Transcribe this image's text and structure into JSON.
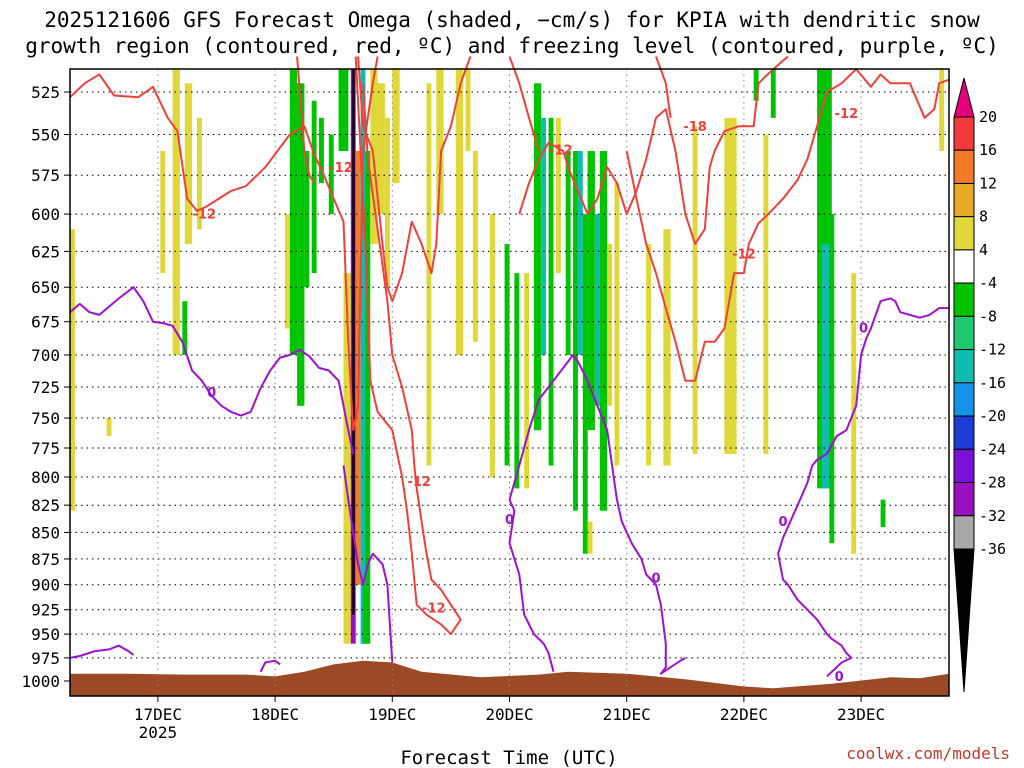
{
  "title_line1": "2025121606 GFS Forecast Omega (shaded, −cm/s) for KPIA with dendritic snow",
  "title_line2": "growth region (contoured, red, ºC) and freezing level (contoured, purple, ºC)",
  "credit": "coolwx.com/models",
  "chart_data": {
    "type": "heatmap",
    "xlabel": "Forecast Time (UTC)",
    "ylabel": "",
    "x_range_hours": [
      0,
      180
    ],
    "x_ticks": [
      {
        "hour": 18,
        "label": "17DEC",
        "sub": "2025"
      },
      {
        "hour": 42,
        "label": "18DEC",
        "sub": ""
      },
      {
        "hour": 66,
        "label": "19DEC",
        "sub": ""
      },
      {
        "hour": 90,
        "label": "20DEC",
        "sub": ""
      },
      {
        "hour": 114,
        "label": "21DEC",
        "sub": ""
      },
      {
        "hour": 138,
        "label": "22DEC",
        "sub": ""
      },
      {
        "hour": 162,
        "label": "23DEC",
        "sub": ""
      }
    ],
    "y_range_hpa": [
      1015,
      500
    ],
    "y_ticks": [
      525,
      550,
      575,
      600,
      625,
      650,
      675,
      700,
      725,
      750,
      775,
      800,
      825,
      850,
      875,
      900,
      925,
      950,
      975,
      1000
    ],
    "colorbar": {
      "levels": [
        "20",
        "16",
        "12",
        "8",
        "4",
        "-4",
        "-8",
        "-12",
        "-16",
        "-20",
        "-24",
        "-28",
        "-32",
        "-36"
      ],
      "colors": [
        "#e3007a",
        "#f23c3c",
        "#f27a28",
        "#e8a828",
        "#e0d838",
        "#ffffff",
        "#00c400",
        "#20c870",
        "#10bcb0",
        "#1494e8",
        "#1e3cd6",
        "#7a10d6",
        "#9a10c0",
        "#a8a8a8",
        "#000000"
      ]
    },
    "contour_colors": {
      "dgz": "#f0403c",
      "freezing": "#a010d0",
      "ground": "#9c4a26"
    },
    "dgz_labels": [
      {
        "text": "-12",
        "hour": 27.5,
        "p": 603
      },
      {
        "text": "-12",
        "hour": 55.5,
        "p": 573
      },
      {
        "text": "-12",
        "hour": 100.5,
        "p": 562
      },
      {
        "text": "-18",
        "hour": 128,
        "p": 548
      },
      {
        "text": "-12",
        "hour": 138,
        "p": 630
      },
      {
        "text": "-12",
        "hour": 159,
        "p": 540
      },
      {
        "text": "-12",
        "hour": 71.5,
        "p": 808
      },
      {
        "text": "-12",
        "hour": 74.5,
        "p": 928
      }
    ],
    "freezing_labels": [
      {
        "text": "0",
        "hour": 29,
        "p": 733
      },
      {
        "text": "0",
        "hour": 90,
        "p": 842
      },
      {
        "text": "0",
        "hour": 120,
        "p": 898
      },
      {
        "text": "0",
        "hour": 146,
        "p": 844
      },
      {
        "text": "0",
        "hour": 162.5,
        "p": 683
      },
      {
        "text": "0",
        "hour": 157.5,
        "p": 1000
      }
    ],
    "omega_cells": [
      {
        "h0": 21,
        "h1": 22.5,
        "p0": 505,
        "p1": 700,
        "c": 4
      },
      {
        "h0": 18.5,
        "h1": 19.5,
        "p0": 560,
        "p1": 640,
        "c": 4
      },
      {
        "h0": 23.5,
        "h1": 25,
        "p0": 520,
        "p1": 620,
        "c": 4
      },
      {
        "h0": 26,
        "h1": 27,
        "p0": 540,
        "p1": 610,
        "c": 4
      },
      {
        "h0": 0,
        "h1": 1,
        "p0": 610,
        "p1": 830,
        "c": 4
      },
      {
        "h0": 7.5,
        "h1": 8.5,
        "p0": 750,
        "p1": 765,
        "c": 4
      },
      {
        "h0": 23,
        "h1": 24,
        "p0": 660,
        "p1": 700,
        "c": 6
      },
      {
        "h0": 45,
        "h1": 46.5,
        "p0": 505,
        "p1": 700,
        "c": 6
      },
      {
        "h0": 46.5,
        "h1": 48,
        "p0": 520,
        "p1": 740,
        "c": 6
      },
      {
        "h0": 48,
        "h1": 49,
        "p0": 560,
        "p1": 650,
        "c": 6
      },
      {
        "h0": 44,
        "h1": 45,
        "p0": 600,
        "p1": 680,
        "c": 4
      },
      {
        "h0": 49.5,
        "h1": 50.5,
        "p0": 530,
        "p1": 640,
        "c": 6
      },
      {
        "h0": 51,
        "h1": 52,
        "p0": 540,
        "p1": 580,
        "c": 6
      },
      {
        "h0": 53,
        "h1": 54,
        "p0": 550,
        "p1": 600,
        "c": 6
      },
      {
        "h0": 55,
        "h1": 57,
        "p0": 505,
        "p1": 560,
        "c": 6
      },
      {
        "h0": 56,
        "h1": 57.5,
        "p0": 640,
        "p1": 960,
        "c": 4
      },
      {
        "h0": 57.5,
        "h1": 58.5,
        "p0": 505,
        "p1": 960,
        "c": 12
      },
      {
        "h0": 57.8,
        "h1": 58.3,
        "p0": 505,
        "p1": 930,
        "c": 14
      },
      {
        "h0": 58.5,
        "h1": 59.5,
        "p0": 560,
        "p1": 900,
        "c": 2
      },
      {
        "h0": 59.5,
        "h1": 60.5,
        "p0": 505,
        "p1": 960,
        "c": 8
      },
      {
        "h0": 60.5,
        "h1": 61.5,
        "p0": 560,
        "p1": 960,
        "c": 6
      },
      {
        "h0": 61.5,
        "h1": 63,
        "p0": 505,
        "p1": 620,
        "c": 4
      },
      {
        "h0": 63,
        "h1": 64.5,
        "p0": 520,
        "p1": 600,
        "c": 4
      },
      {
        "h0": 64.5,
        "h1": 65.5,
        "p0": 540,
        "p1": 650,
        "c": 4
      },
      {
        "h0": 60,
        "h1": 61,
        "p0": 900,
        "p1": 960,
        "c": 6
      },
      {
        "h0": 66,
        "h1": 67.5,
        "p0": 505,
        "p1": 580,
        "c": 4
      },
      {
        "h0": 73,
        "h1": 74,
        "p0": 520,
        "p1": 790,
        "c": 4
      },
      {
        "h0": 75,
        "h1": 76.5,
        "p0": 505,
        "p1": 600,
        "c": 4
      },
      {
        "h0": 79,
        "h1": 80.5,
        "p0": 505,
        "p1": 700,
        "c": 4
      },
      {
        "h0": 81,
        "h1": 82,
        "p0": 505,
        "p1": 560,
        "c": 4
      },
      {
        "h0": 86,
        "h1": 87,
        "p0": 600,
        "p1": 800,
        "c": 4
      },
      {
        "h0": 82.5,
        "h1": 83.5,
        "p0": 560,
        "p1": 690,
        "c": 4
      },
      {
        "h0": 89,
        "h1": 90,
        "p0": 620,
        "p1": 790,
        "c": 6
      },
      {
        "h0": 91,
        "h1": 92,
        "p0": 640,
        "p1": 810,
        "c": 6
      },
      {
        "h0": 93,
        "h1": 94,
        "p0": 640,
        "p1": 810,
        "c": 4
      },
      {
        "h0": 95,
        "h1": 96.5,
        "p0": 520,
        "p1": 760,
        "c": 6
      },
      {
        "h0": 96.5,
        "h1": 97.5,
        "p0": 540,
        "p1": 700,
        "c": 8
      },
      {
        "h0": 98,
        "h1": 99,
        "p0": 540,
        "p1": 790,
        "c": 6
      },
      {
        "h0": 99.5,
        "h1": 100.5,
        "p0": 540,
        "p1": 640,
        "c": 4
      },
      {
        "h0": 101.5,
        "h1": 102.5,
        "p0": 560,
        "p1": 700,
        "c": 6
      },
      {
        "h0": 103,
        "h1": 104,
        "p0": 560,
        "p1": 830,
        "c": 6
      },
      {
        "h0": 104,
        "h1": 105,
        "p0": 560,
        "p1": 700,
        "c": 8
      },
      {
        "h0": 105,
        "h1": 106,
        "p0": 600,
        "p1": 870,
        "c": 6
      },
      {
        "h0": 106,
        "h1": 107.5,
        "p0": 560,
        "p1": 760,
        "c": 6
      },
      {
        "h0": 107.5,
        "h1": 108.5,
        "p0": 600,
        "p1": 740,
        "c": 8
      },
      {
        "h0": 108.5,
        "h1": 110,
        "p0": 560,
        "p1": 830,
        "c": 6
      },
      {
        "h0": 110,
        "h1": 111,
        "p0": 620,
        "p1": 740,
        "c": 4
      },
      {
        "h0": 111.5,
        "h1": 112.5,
        "p0": 580,
        "p1": 790,
        "c": 4
      },
      {
        "h0": 106,
        "h1": 107,
        "p0": 840,
        "p1": 870,
        "c": 4
      },
      {
        "h0": 118,
        "h1": 119,
        "p0": 620,
        "p1": 790,
        "c": 4
      },
      {
        "h0": 121.5,
        "h1": 123,
        "p0": 610,
        "p1": 790,
        "c": 4
      },
      {
        "h0": 127.5,
        "h1": 128.5,
        "p0": 545,
        "p1": 780,
        "c": 4
      },
      {
        "h0": 134,
        "h1": 136.5,
        "p0": 540,
        "p1": 780,
        "c": 4
      },
      {
        "h0": 142,
        "h1": 143,
        "p0": 550,
        "p1": 780,
        "c": 4
      },
      {
        "h0": 140,
        "h1": 141,
        "p0": 505,
        "p1": 530,
        "c": 6
      },
      {
        "h0": 143.5,
        "h1": 144.5,
        "p0": 505,
        "p1": 540,
        "c": 6
      },
      {
        "h0": 153,
        "h1": 156,
        "p0": 505,
        "p1": 810,
        "c": 6
      },
      {
        "h0": 154,
        "h1": 155.5,
        "p0": 620,
        "p1": 810,
        "c": 8
      },
      {
        "h0": 155.5,
        "h1": 156.5,
        "p0": 600,
        "p1": 860,
        "c": 6
      },
      {
        "h0": 160,
        "h1": 161,
        "p0": 640,
        "p1": 870,
        "c": 4
      },
      {
        "h0": 166,
        "h1": 167,
        "p0": 820,
        "p1": 845,
        "c": 6
      },
      {
        "h0": 178,
        "h1": 179,
        "p0": 505,
        "p1": 560,
        "c": 4
      }
    ]
  }
}
